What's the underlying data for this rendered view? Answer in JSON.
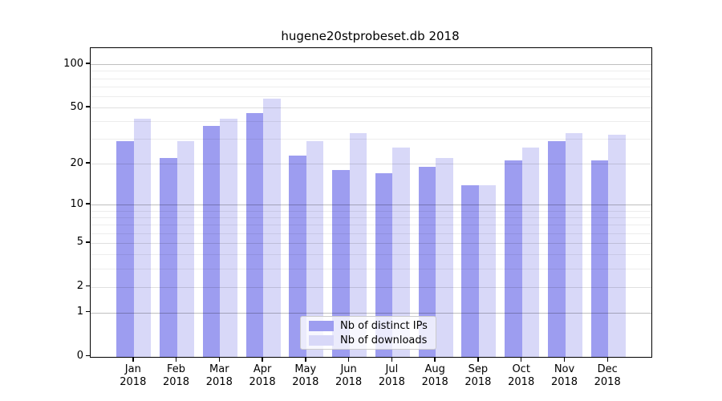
{
  "chart_data": {
    "type": "bar",
    "title": "hugene20stprobeset.db 2018",
    "categories": [
      "Jan",
      "Feb",
      "Mar",
      "Apr",
      "May",
      "Jun",
      "Jul",
      "Aug",
      "Sep",
      "Oct",
      "Nov",
      "Dec"
    ],
    "category_year": "2018",
    "series": [
      {
        "name": "Nb of distinct IPs",
        "color": "#9d9df0",
        "values": [
          29,
          22,
          37,
          46,
          23,
          18,
          17,
          19,
          14,
          21,
          29,
          21
        ]
      },
      {
        "name": "Nb of downloads",
        "color": "#d8d8f8",
        "values": [
          42,
          29,
          42,
          58,
          29,
          33,
          26,
          22,
          14,
          26,
          33,
          32
        ]
      }
    ],
    "y_scale": "log1p",
    "y_ticks": [
      0,
      1,
      2,
      5,
      10,
      20,
      50,
      100
    ],
    "y_minor_ticks": [
      3,
      4,
      6,
      7,
      8,
      9,
      30,
      40,
      60,
      70,
      80,
      90
    ],
    "ylim": [
      0,
      130
    ],
    "xlabel": "",
    "ylabel": "",
    "grid": true,
    "grid_on_top": true,
    "legend_position": "bottom-center-inside",
    "colors": {
      "axis": "#000000",
      "grid_major": "#c0c0c0",
      "grid_minor": "#ececec",
      "legend_border": "#cccccc",
      "background": "#ffffff"
    }
  }
}
